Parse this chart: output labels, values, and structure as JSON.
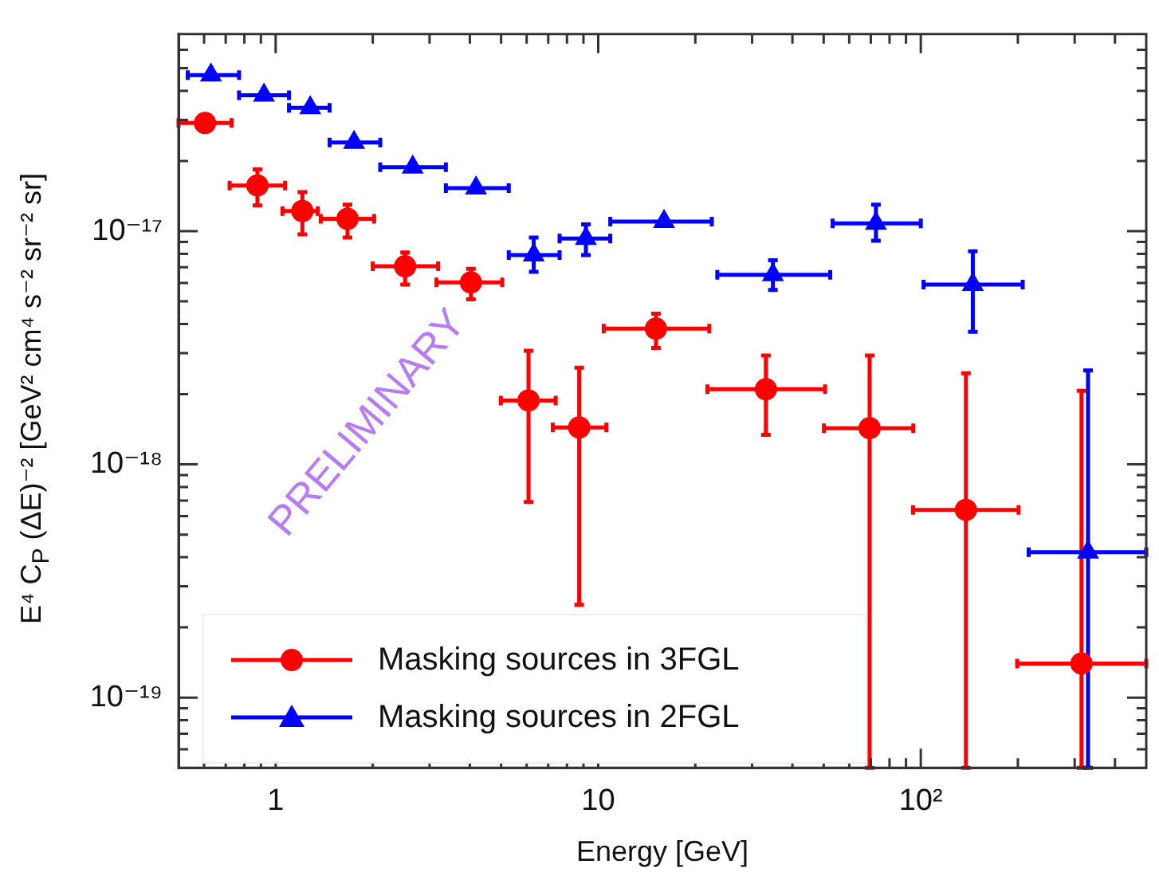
{
  "chart_data": {
    "type": "scatter",
    "xlabel": "Energy [GeV]",
    "ylabel": "E⁴ C$_{P}$ (ΔE)⁻² [GeV² cm⁴ s⁻² sr⁻² sr]",
    "log": "xy",
    "grid": false,
    "legend": "bottom left",
    "annotations": [
      "PRELIMINARY"
    ],
    "xlim": [
      0.5,
      500
    ],
    "ylim": [
      5e-20,
      7e-17
    ],
    "xticks": [
      {
        "value": 0.6,
        "label": null
      },
      {
        "value": 0.7,
        "label": null
      },
      {
        "value": 0.8,
        "label": null
      },
      {
        "value": 0.9,
        "label": null
      },
      1,
      {
        "value": 2,
        "label": null
      },
      {
        "value": 3,
        "label": null
      },
      {
        "value": 4,
        "label": null
      },
      {
        "value": 5,
        "label": null
      },
      {
        "value": 6,
        "label": null
      },
      {
        "value": 7,
        "label": null
      },
      {
        "value": 8,
        "label": null
      },
      {
        "value": 9,
        "label": null
      },
      10,
      {
        "value": 20,
        "label": null
      },
      {
        "value": 30,
        "label": null
      },
      {
        "value": 40,
        "label": null
      },
      {
        "value": 50,
        "label": null
      },
      {
        "value": 60,
        "label": null
      },
      {
        "value": 70,
        "label": null
      },
      {
        "value": 80,
        "label": null
      },
      {
        "value": 90,
        "label": null
      },
      {
        "value": 100,
        "label": "10²"
      },
      {
        "value": 200,
        "label": null
      },
      {
        "value": 300,
        "label": null
      },
      {
        "value": 400,
        "label": null
      }
    ],
    "yticks": [
      {
        "value": 6e-20,
        "label": null
      },
      {
        "value": 7e-20,
        "label": null
      },
      {
        "value": 8e-20,
        "label": null
      },
      {
        "value": 9e-20,
        "label": null
      },
      {
        "value": 1e-19,
        "label": "10⁻¹⁹"
      },
      {
        "value": 2e-19,
        "label": null
      },
      {
        "value": 3e-19,
        "label": null
      },
      {
        "value": 4e-19,
        "label": null
      },
      {
        "value": 5e-19,
        "label": null
      },
      {
        "value": 6e-19,
        "label": null
      },
      {
        "value": 7e-19,
        "label": null
      },
      {
        "value": 8e-19,
        "label": null
      },
      {
        "value": 9e-19,
        "label": null
      },
      {
        "value": 1e-18,
        "label": "10⁻¹⁸"
      },
      {
        "value": 2e-18,
        "label": null
      },
      {
        "value": 3e-18,
        "label": null
      },
      {
        "value": 4e-18,
        "label": null
      },
      {
        "value": 5e-18,
        "label": null
      },
      {
        "value": 6e-18,
        "label": null
      },
      {
        "value": 7e-18,
        "label": null
      },
      {
        "value": 8e-18,
        "label": null
      },
      {
        "value": 9e-18,
        "label": null
      },
      {
        "value": 1e-17,
        "label": "10⁻¹⁷"
      },
      {
        "value": 2e-17,
        "label": null
      },
      {
        "value": 3e-17,
        "label": null
      },
      {
        "value": 4e-17,
        "label": null
      },
      {
        "value": 5e-17,
        "label": null
      },
      {
        "value": 6e-17,
        "label": null
      }
    ],
    "series": [
      {
        "name": "Masking sources in 3FGL",
        "color": "#ff0000",
        "marker": "circle",
        "x": [
          0.604,
          0.878,
          1.21,
          1.67,
          2.52,
          4.03,
          6.08,
          8.73,
          15.1,
          33.1,
          69.4,
          138,
          315
        ],
        "values": [
          2.91e-17,
          1.57e-17,
          1.22e-17,
          1.13e-17,
          7.07e-18,
          6.03e-18,
          1.88e-18,
          1.44e-18,
          3.82e-18,
          2.1e-18,
          1.43e-18,
          6.38e-19,
          1.4e-19
        ],
        "errors": [
          null,
          [
            1.29e-17,
            1.84e-17
          ],
          [
            9.7e-18,
            1.47e-17
          ],
          [
            9.4e-18,
            1.3e-17
          ],
          [
            5.9e-18,
            8.1e-18
          ],
          [
            5.1e-18,
            6.9e-18
          ],
          [
            6.9e-19,
            3.07e-18
          ],
          [
            2.5e-19,
            2.6e-18
          ],
          [
            3.16e-18,
            4.43e-18
          ],
          [
            1.34e-18,
            2.93e-18
          ],
          [
            5e-20,
            2.93e-18
          ],
          [
            5e-20,
            2.46e-18
          ],
          [
            5e-20,
            2.07e-18
          ]
        ],
        "xerrors": [
          [
            0.5,
            0.73
          ],
          [
            0.72,
            1.07
          ],
          [
            1.05,
            1.35
          ],
          [
            1.38,
            2.02
          ],
          [
            2.0,
            3.19
          ],
          [
            3.15,
            5.04
          ],
          [
            4.99,
            7.38
          ],
          [
            7.23,
            10.6
          ],
          [
            10.4,
            22.1
          ],
          [
            21.8,
            50.5
          ],
          [
            50.1,
            94.8
          ],
          [
            94.6,
            201
          ],
          [
            199,
            500
          ]
        ]
      },
      {
        "name": "Masking sources in 2FGL",
        "color": "#0000ff",
        "marker": "triangle",
        "x": [
          0.63,
          0.92,
          1.28,
          1.75,
          2.66,
          4.18,
          6.31,
          9.16,
          16.0,
          34.8,
          72.6,
          145,
          330
        ],
        "values": [
          4.67e-17,
          3.83e-17,
          3.38e-17,
          2.4e-17,
          1.88e-17,
          1.53e-17,
          7.9e-18,
          9.3e-18,
          1.1e-17,
          6.5e-18,
          1.08e-17,
          5.9e-18,
          4.2e-19
        ],
        "errors": [
          null,
          null,
          null,
          null,
          null,
          null,
          [
            6.7e-18,
            9.4e-18
          ],
          [
            7.9e-18,
            1.07e-17
          ],
          null,
          [
            5.6e-18,
            7.5e-18
          ],
          [
            9.1e-18,
            1.3e-17
          ],
          [
            3.7e-18,
            8.2e-18
          ],
          [
            5e-20,
            2.53e-18
          ]
        ],
        "xerrors": [
          [
            0.534,
            0.77
          ],
          [
            0.77,
            1.1
          ],
          [
            1.1,
            1.47
          ],
          [
            1.47,
            2.11
          ],
          [
            2.11,
            3.37
          ],
          [
            3.37,
            5.28
          ],
          [
            5.28,
            7.59
          ],
          [
            7.59,
            10.9
          ],
          [
            10.9,
            22.5
          ],
          [
            23.4,
            52.4
          ],
          [
            53.3,
            100
          ],
          [
            102,
            207
          ],
          [
            216,
            500
          ]
        ]
      }
    ]
  }
}
